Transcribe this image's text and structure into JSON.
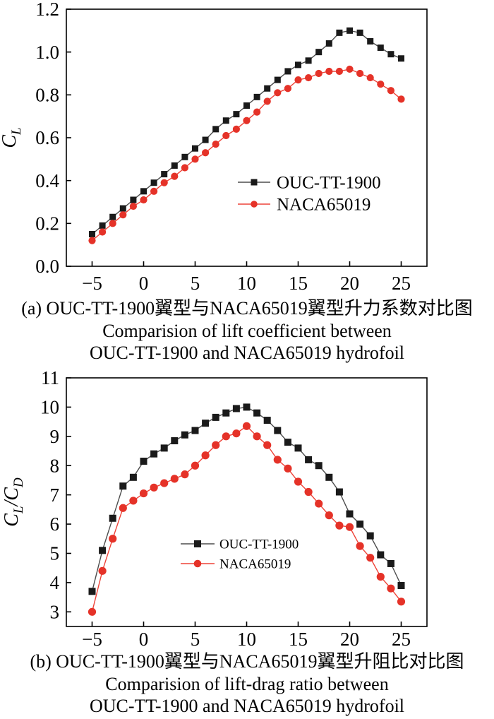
{
  "captions": {
    "a": {
      "line1": "(a) OUC-TT-1900翼型与NACA65019翼型升力系数对比图",
      "line2": "Comparision of lift coefficient between",
      "line3": "OUC-TT-1900 and NACA65019 hydrofoil"
    },
    "b": {
      "line1": "(b) OUC-TT-1900翼型与NACA65019翼型升阻比对比图",
      "line2": "Comparision of lift-drag ratio between",
      "line3": "OUC-TT-1900 and NACA65019 hydrofoil"
    }
  },
  "colors": {
    "black_series": "#1a1a1a",
    "black_line": "#4d4d4d",
    "red_series": "#e53228",
    "red_line": "#ee4338",
    "frame": "#000000"
  },
  "chart_data": [
    {
      "id": "lift-coefficient-vs-angle",
      "type": "line",
      "title": "",
      "xlabel": "",
      "ylabel": "CL",
      "ylabel_parts": [
        {
          "text": "C",
          "sub": "L"
        }
      ],
      "xlim": [
        -7.5,
        27.5
      ],
      "ylim": [
        0,
        1.2
      ],
      "grid": false,
      "legend_position": "inside middle-right",
      "xticks": [
        -5,
        0,
        5,
        10,
        15,
        20,
        25
      ],
      "xtick_labels": [
        "−5",
        "0",
        "5",
        "10",
        "15",
        "20",
        "25"
      ],
      "yticks": [
        0,
        0.2,
        0.4,
        0.6,
        0.8,
        1.0,
        1.2
      ],
      "ytick_labels": [
        "0.0",
        "0.2",
        "0.4",
        "0.6",
        "0.8",
        "1.0",
        "1.2"
      ],
      "x": [
        -5,
        -4,
        -3,
        -2,
        -1,
        0,
        1,
        2,
        3,
        4,
        5,
        6,
        7,
        8,
        9,
        10,
        11,
        12,
        13,
        14,
        15,
        16,
        17,
        18,
        19,
        20,
        21,
        22,
        23,
        24,
        25
      ],
      "series": [
        {
          "name": "OUC-TT-1900",
          "marker": "square",
          "color": "#1a1a1a",
          "line_color": "#4d4d4d",
          "values": [
            0.15,
            0.19,
            0.23,
            0.27,
            0.31,
            0.35,
            0.39,
            0.43,
            0.47,
            0.51,
            0.55,
            0.59,
            0.64,
            0.68,
            0.71,
            0.75,
            0.79,
            0.83,
            0.87,
            0.91,
            0.94,
            0.96,
            1.0,
            1.04,
            1.09,
            1.1,
            1.09,
            1.05,
            1.02,
            0.99,
            0.97
          ]
        },
        {
          "name": "NACA65019",
          "marker": "circle",
          "color": "#e53228",
          "line_color": "#ee4338",
          "values": [
            0.12,
            0.16,
            0.2,
            0.24,
            0.28,
            0.31,
            0.35,
            0.39,
            0.42,
            0.46,
            0.5,
            0.53,
            0.57,
            0.61,
            0.64,
            0.68,
            0.72,
            0.77,
            0.81,
            0.83,
            0.87,
            0.88,
            0.9,
            0.91,
            0.91,
            0.92,
            0.9,
            0.88,
            0.85,
            0.82,
            0.78
          ]
        }
      ]
    },
    {
      "id": "lift-drag-ratio-vs-angle",
      "type": "line",
      "title": "",
      "xlabel": "",
      "ylabel": "CL/CD",
      "ylabel_parts": [
        {
          "text": "C",
          "sub": "L"
        },
        {
          "text": "/"
        },
        {
          "text": "C",
          "sub": "D"
        }
      ],
      "xlim": [
        -7.5,
        27.5
      ],
      "ylim": [
        2.5,
        11
      ],
      "grid": false,
      "legend_position": "inside bottom-center",
      "xticks": [
        -5,
        0,
        5,
        10,
        15,
        20,
        25
      ],
      "xtick_labels": [
        "−5",
        "0",
        "5",
        "10",
        "15",
        "20",
        "25"
      ],
      "yticks": [
        3,
        4,
        5,
        6,
        7,
        8,
        9,
        10,
        11
      ],
      "ytick_labels": [
        "3",
        "4",
        "5",
        "6",
        "7",
        "8",
        "9",
        "10",
        "11"
      ],
      "x": [
        -5,
        -4,
        -3,
        -2,
        -1,
        0,
        1,
        2,
        3,
        4,
        5,
        6,
        7,
        8,
        9,
        10,
        11,
        12,
        13,
        14,
        15,
        16,
        17,
        18,
        19,
        20,
        21,
        22,
        23,
        24,
        25
      ],
      "series": [
        {
          "name": "OUC-TT-1900",
          "marker": "square",
          "color": "#1a1a1a",
          "line_color": "#4d4d4d",
          "values": [
            3.7,
            5.1,
            6.2,
            7.3,
            7.6,
            8.15,
            8.4,
            8.6,
            8.85,
            9.05,
            9.2,
            9.45,
            9.65,
            9.8,
            9.95,
            10.0,
            9.8,
            9.55,
            9.2,
            8.8,
            8.6,
            8.2,
            8.0,
            7.6,
            7.1,
            6.35,
            6.0,
            5.6,
            4.95,
            4.65,
            3.9
          ]
        },
        {
          "name": "NACA65019",
          "marker": "circle",
          "color": "#e53228",
          "line_color": "#ee4338",
          "values": [
            3.0,
            4.4,
            5.5,
            6.55,
            6.8,
            7.05,
            7.25,
            7.4,
            7.55,
            7.7,
            8.0,
            8.35,
            8.7,
            9.0,
            9.1,
            9.35,
            9.0,
            8.7,
            8.2,
            7.9,
            7.45,
            7.1,
            6.7,
            6.3,
            5.95,
            5.9,
            5.25,
            4.85,
            4.2,
            3.8,
            3.35
          ]
        }
      ]
    }
  ]
}
